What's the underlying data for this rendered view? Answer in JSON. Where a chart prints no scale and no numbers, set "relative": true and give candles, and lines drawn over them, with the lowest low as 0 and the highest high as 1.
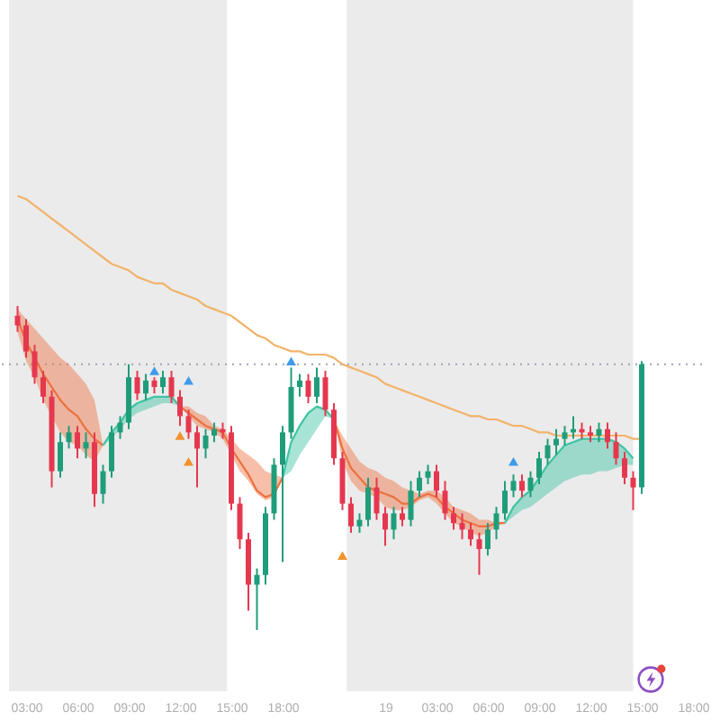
{
  "chart_data": {
    "type": "candlestick",
    "relative": true,
    "tick_labels": "x",
    "grid": false,
    "x": [
      "--01-18T02:30",
      "--01-18T03:00",
      "--01-18T03:30",
      "--01-18T04:00",
      "--01-18T04:30",
      "--01-18T05:00",
      "--01-18T05:30",
      "--01-18T06:00",
      "--01-18T06:30",
      "--01-18T07:00",
      "--01-18T07:30",
      "--01-18T08:00",
      "--01-18T08:30",
      "--01-18T09:00",
      "--01-18T09:30",
      "--01-18T10:00",
      "--01-18T10:30",
      "--01-18T11:00",
      "--01-18T11:30",
      "--01-18T12:00",
      "--01-18T12:30",
      "--01-18T13:00",
      "--01-18T13:30",
      "--01-18T14:00",
      "--01-18T14:30",
      "--01-18T15:00",
      "--01-18T15:30",
      "--01-18T16:00",
      "--01-18T16:30",
      "--01-18T17:00",
      "--01-18T17:30",
      "--01-18T18:00",
      "--01-18T18:30",
      "--01-18T19:00",
      "--01-18T19:30",
      "--01-18T20:00",
      "--01-18T20:30",
      "--01-18T21:00",
      "--01-18T21:30",
      "--01-18T22:00",
      "--01-18T22:30",
      "--01-18T23:00",
      "--01-18T23:30",
      "--01-19T00:00",
      "--01-19T00:30",
      "--01-19T01:00",
      "--01-19T01:30",
      "--01-19T02:00",
      "--01-19T02:30",
      "--01-19T03:00",
      "--01-19T03:30",
      "--01-19T04:00",
      "--01-19T04:30",
      "--01-19T05:00",
      "--01-19T05:30",
      "--01-19T06:00",
      "--01-19T06:30",
      "--01-19T07:00",
      "--01-19T07:30",
      "--01-19T08:00",
      "--01-19T08:30",
      "--01-19T09:00",
      "--01-19T09:30",
      "--01-19T10:00",
      "--01-19T10:30",
      "--01-19T11:00",
      "--01-19T11:30",
      "--01-19T12:00",
      "--01-19T12:30",
      "--01-19T13:00",
      "--01-19T13:30",
      "--01-19T14:00",
      "--01-19T14:30",
      "--01-19T15:00"
    ],
    "ohlc": [
      [
        0.97,
        1.0,
        0.92,
        0.94
      ],
      [
        0.94,
        0.96,
        0.84,
        0.86
      ],
      [
        0.86,
        0.88,
        0.76,
        0.78
      ],
      [
        0.78,
        0.8,
        0.7,
        0.72
      ],
      [
        0.72,
        0.74,
        0.44,
        0.49
      ],
      [
        0.49,
        0.61,
        0.47,
        0.58
      ],
      [
        0.58,
        0.63,
        0.56,
        0.61
      ],
      [
        0.61,
        0.63,
        0.53,
        0.56
      ],
      [
        0.56,
        0.61,
        0.53,
        0.58
      ],
      [
        0.58,
        0.61,
        0.38,
        0.42
      ],
      [
        0.42,
        0.51,
        0.39,
        0.49
      ],
      [
        0.49,
        0.63,
        0.47,
        0.61
      ],
      [
        0.61,
        0.66,
        0.59,
        0.64
      ],
      [
        0.64,
        0.82,
        0.62,
        0.78
      ],
      [
        0.78,
        0.8,
        0.71,
        0.73
      ],
      [
        0.73,
        0.79,
        0.71,
        0.77
      ],
      [
        0.77,
        0.78,
        0.73,
        0.75
      ],
      [
        0.75,
        0.8,
        0.73,
        0.78
      ],
      [
        0.78,
        0.8,
        0.7,
        0.72
      ],
      [
        0.72,
        0.74,
        0.63,
        0.66
      ],
      [
        0.66,
        0.68,
        0.59,
        0.61
      ],
      [
        0.61,
        0.63,
        0.44,
        0.56
      ],
      [
        0.56,
        0.62,
        0.53,
        0.6
      ],
      [
        0.6,
        0.64,
        0.58,
        0.62
      ],
      [
        0.62,
        0.64,
        0.59,
        0.61
      ],
      [
        0.61,
        0.63,
        0.37,
        0.39
      ],
      [
        0.39,
        0.41,
        0.25,
        0.28
      ],
      [
        0.28,
        0.3,
        0.06,
        0.14
      ],
      [
        0.14,
        0.19,
        0,
        0.17
      ],
      [
        0.17,
        0.38,
        0.14,
        0.36
      ],
      [
        0.36,
        0.53,
        0.34,
        0.51
      ],
      [
        0.51,
        0.63,
        0.21,
        0.61
      ],
      [
        0.61,
        0.81,
        0.59,
        0.75
      ],
      [
        0.75,
        0.79,
        0.72,
        0.77
      ],
      [
        0.77,
        0.79,
        0.7,
        0.72
      ],
      [
        0.72,
        0.81,
        0.7,
        0.78
      ],
      [
        0.78,
        0.8,
        0.66,
        0.68
      ],
      [
        0.68,
        0.7,
        0.51,
        0.53
      ],
      [
        0.53,
        0.55,
        0.37,
        0.39
      ],
      [
        0.39,
        0.41,
        0.3,
        0.32
      ],
      [
        0.32,
        0.36,
        0.3,
        0.34
      ],
      [
        0.34,
        0.47,
        0.32,
        0.44
      ],
      [
        0.44,
        0.47,
        0.34,
        0.36
      ],
      [
        0.36,
        0.38,
        0.26,
        0.31
      ],
      [
        0.31,
        0.38,
        0.28,
        0.36
      ],
      [
        0.36,
        0.38,
        0.32,
        0.34
      ],
      [
        0.34,
        0.46,
        0.32,
        0.43
      ],
      [
        0.43,
        0.49,
        0.41,
        0.47
      ],
      [
        0.47,
        0.51,
        0.45,
        0.49
      ],
      [
        0.49,
        0.51,
        0.41,
        0.43
      ],
      [
        0.43,
        0.46,
        0.34,
        0.36
      ],
      [
        0.36,
        0.38,
        0.31,
        0.33
      ],
      [
        0.33,
        0.36,
        0.28,
        0.31
      ],
      [
        0.31,
        0.33,
        0.26,
        0.28
      ],
      [
        0.28,
        0.3,
        0.17,
        0.25
      ],
      [
        0.25,
        0.33,
        0.23,
        0.31
      ],
      [
        0.31,
        0.38,
        0.28,
        0.36
      ],
      [
        0.36,
        0.46,
        0.34,
        0.43
      ],
      [
        0.43,
        0.48,
        0.41,
        0.46
      ],
      [
        0.46,
        0.48,
        0.41,
        0.43
      ],
      [
        0.43,
        0.49,
        0.41,
        0.47
      ],
      [
        0.47,
        0.55,
        0.45,
        0.53
      ],
      [
        0.53,
        0.59,
        0.51,
        0.57
      ],
      [
        0.57,
        0.62,
        0.54,
        0.59
      ],
      [
        0.59,
        0.63,
        0.57,
        0.61
      ],
      [
        0.61,
        0.66,
        0.59,
        0.62
      ],
      [
        0.62,
        0.64,
        0.59,
        0.61
      ],
      [
        0.61,
        0.63,
        0.58,
        0.6
      ],
      [
        0.6,
        0.64,
        0.58,
        0.62
      ],
      [
        0.62,
        0.64,
        0.56,
        0.58
      ],
      [
        0.58,
        0.61,
        0.51,
        0.53
      ],
      [
        0.53,
        0.55,
        0.45,
        0.47
      ],
      [
        0.47,
        0.49,
        0.37,
        0.44
      ],
      [
        0.44,
        0.83,
        0.42,
        0.82
      ]
    ],
    "colors": [
      "#e5384f",
      "#e5384f",
      "#e5384f",
      "#e5384f",
      "#e5384f",
      "#1f9d7a",
      "#1f9d7a",
      "#e5384f",
      "#1f9d7a",
      "#e5384f",
      "#1f9d7a",
      "#1f9d7a",
      "#1f9d7a",
      "#1f9d7a",
      "#e5384f",
      "#1f9d7a",
      "#e5384f",
      "#1f9d7a",
      "#e5384f",
      "#e5384f",
      "#e5384f",
      "#e5384f",
      "#1f9d7a",
      "#1f9d7a",
      "#e5384f",
      "#e5384f",
      "#e5384f",
      "#e5384f",
      "#1f9d7a",
      "#1f9d7a",
      "#1f9d7a",
      "#1f9d7a",
      "#1f9d7a",
      "#1f9d7a",
      "#e5384f",
      "#1f9d7a",
      "#e5384f",
      "#e5384f",
      "#e5384f",
      "#e5384f",
      "#1f9d7a",
      "#1f9d7a",
      "#e5384f",
      "#e5384f",
      "#1f9d7a",
      "#e5384f",
      "#1f9d7a",
      "#1f9d7a",
      "#1f9d7a",
      "#e5384f",
      "#e5384f",
      "#e5384f",
      "#e5384f",
      "#e5384f",
      "#e5384f",
      "#1f9d7a",
      "#1f9d7a",
      "#1f9d7a",
      "#1f9d7a",
      "#e5384f",
      "#1f9d7a",
      "#1f9d7a",
      "#1f9d7a",
      "#1f9d7a",
      "#1f9d7a",
      "#1f9d7a",
      "#e5384f",
      "#e5384f",
      "#1f9d7a",
      "#e5384f",
      "#e5384f",
      "#e5384f",
      "#e5384f",
      "#1f9d7a"
    ],
    "xlim": [
      "--01-18T02:00",
      "--01-19T18:00"
    ],
    "xticks": [
      {
        "value": "--01-18T03:00",
        "label": "03:00"
      },
      {
        "value": "--01-18T06:00",
        "label": "06:00"
      },
      {
        "value": "--01-18T09:00",
        "label": "09:00"
      },
      {
        "value": "--01-18T12:00",
        "label": "12:00"
      },
      {
        "value": "--01-18T15:00",
        "label": "15:00"
      },
      {
        "value": "--01-18T18:00",
        "label": "18:00"
      },
      {
        "value": "--01-19",
        "label": "19"
      },
      {
        "value": "--01-19T03:00",
        "label": "03:00"
      },
      {
        "value": "--01-19T06:00",
        "label": "06:00"
      },
      {
        "value": "--01-19T09:00",
        "label": "09:00"
      },
      {
        "value": "--01-19T12:00",
        "label": "12:00"
      },
      {
        "value": "--01-19T15:00",
        "label": "15:00"
      },
      {
        "value": "--01-19T18:00",
        "label": "18:00"
      }
    ],
    "bands": [
      {
        "axis": "x",
        "from": "--01-18T02:00",
        "to": "--01-18T14:45",
        "color": "#ebebeb"
      },
      {
        "axis": "x",
        "from": "--01-18T21:45",
        "to": "--01-19T14:30",
        "color": "#ebebeb"
      }
    ],
    "ref_lines": [
      {
        "axis": "y",
        "value": 0.82,
        "color": "#9aa5b1",
        "line_style": "dotted"
      }
    ],
    "series": [
      {
        "type": "line",
        "color": "#f2b36b",
        "values": [
          1.34,
          1.33,
          1.31,
          1.29,
          1.27,
          1.25,
          1.23,
          1.21,
          1.19,
          1.17,
          1.15,
          1.13,
          1.12,
          1.11,
          1.09,
          1.08,
          1.07,
          1.07,
          1.05,
          1.04,
          1.03,
          1.02,
          1.0,
          0.99,
          0.98,
          0.97,
          0.95,
          0.93,
          0.91,
          0.9,
          0.88,
          0.87,
          0.86,
          0.86,
          0.85,
          0.85,
          0.85,
          0.84,
          0.82,
          0.81,
          0.8,
          0.79,
          0.78,
          0.76,
          0.75,
          0.74,
          0.73,
          0.72,
          0.71,
          0.7,
          0.69,
          0.68,
          0.67,
          0.66,
          0.66,
          0.65,
          0.65,
          0.64,
          0.63,
          0.63,
          0.62,
          0.61,
          0.61,
          0.6,
          0.6,
          0.6,
          0.6,
          0.6,
          0.6,
          0.6,
          0.6,
          0.6,
          0.59,
          0.59
        ]
      },
      {
        "type": "line",
        "color": "#ee7040",
        "x": [
          "--01-18T02:30",
          "--01-18T03:00",
          "--01-18T03:30",
          "--01-18T04:00",
          "--01-18T04:30",
          "--01-18T05:00",
          "--01-18T05:30",
          "--01-18T06:00",
          "--01-18T06:30",
          "--01-18T07:00",
          "--01-18T07:30"
        ],
        "values": [
          0.96,
          0.89,
          0.84,
          0.79,
          0.75,
          0.71,
          0.68,
          0.66,
          0.62,
          0.59,
          0.57
        ],
        "lower": [
          0.92,
          0.83,
          0.78,
          0.71,
          0.66,
          0.61,
          0.58,
          0.57,
          0.54,
          0.52,
          0.57
        ],
        "upper": [
          0.99,
          0.96,
          0.93,
          0.9,
          0.87,
          0.84,
          0.82,
          0.79,
          0.76,
          0.71,
          0.57
        ]
      },
      {
        "type": "line",
        "color": "#3ec4a4",
        "x": [
          "--01-18T07:30",
          "--01-18T08:00",
          "--01-18T08:30",
          "--01-18T09:00",
          "--01-18T09:30",
          "--01-18T10:00",
          "--01-18T10:30",
          "--01-18T11:00",
          "--01-18T11:30",
          "--01-18T12:00"
        ],
        "values": [
          0.57,
          0.61,
          0.64,
          0.68,
          0.7,
          0.71,
          0.72,
          0.72,
          0.72,
          0.69
        ],
        "lower": [
          0.57,
          0.59,
          0.62,
          0.65,
          0.67,
          0.68,
          0.69,
          0.7,
          0.7,
          0.69
        ],
        "upper": [
          0.57,
          0.61,
          0.64,
          0.68,
          0.7,
          0.71,
          0.72,
          0.72,
          0.72,
          0.69
        ]
      },
      {
        "type": "line",
        "color": "#ee7040",
        "x": [
          "--01-18T12:00",
          "--01-18T12:30",
          "--01-18T13:00",
          "--01-18T13:30",
          "--01-18T14:00",
          "--01-18T14:30",
          "--01-18T15:00",
          "--01-18T15:30",
          "--01-18T16:00",
          "--01-18T16:30",
          "--01-18T17:00",
          "--01-18T17:30",
          "--01-18T18:00"
        ],
        "values": [
          0.69,
          0.67,
          0.65,
          0.63,
          0.62,
          0.61,
          0.56,
          0.52,
          0.48,
          0.43,
          0.41,
          0.42,
          0.47
        ],
        "lower": [
          0.69,
          0.66,
          0.63,
          0.62,
          0.61,
          0.59,
          0.54,
          0.49,
          0.46,
          0.42,
          0.4,
          0.41,
          0.47
        ],
        "upper": [
          0.69,
          0.69,
          0.67,
          0.66,
          0.63,
          0.62,
          0.59,
          0.56,
          0.54,
          0.52,
          0.49,
          0.48,
          0.47
        ]
      },
      {
        "type": "line",
        "color": "#3ec4a4",
        "x": [
          "--01-18T18:00",
          "--01-18T18:30",
          "--01-18T19:00",
          "--01-18T19:30",
          "--01-18T20:00",
          "--01-18T20:30",
          "--01-18T21:00"
        ],
        "values": [
          0.47,
          0.58,
          0.63,
          0.67,
          0.69,
          0.68,
          0.65
        ],
        "lower": [
          0.47,
          0.49,
          0.54,
          0.58,
          0.62,
          0.66,
          0.65
        ],
        "upper": [
          0.47,
          0.58,
          0.63,
          0.67,
          0.69,
          0.68,
          0.65
        ]
      },
      {
        "type": "line",
        "color": "#ee7040",
        "x": [
          "--01-18T21:00",
          "--01-18T21:30",
          "--01-18T22:00",
          "--01-18T22:30",
          "--01-18T23:00",
          "--01-18T23:30",
          "--01-19T00:00",
          "--01-19T00:30",
          "--01-19T01:00",
          "--01-19T01:30",
          "--01-19T02:00",
          "--01-19T02:30",
          "--01-19T03:00",
          "--01-19T03:30",
          "--01-19T04:00",
          "--01-19T04:30",
          "--01-19T05:00",
          "--01-19T05:30",
          "--01-19T06:00",
          "--01-19T06:30",
          "--01-19T07:00"
        ],
        "values": [
          0.65,
          0.56,
          0.5,
          0.47,
          0.44,
          0.43,
          0.42,
          0.41,
          0.39,
          0.39,
          0.41,
          0.42,
          0.41,
          0.38,
          0.36,
          0.34,
          0.33,
          0.32,
          0.32,
          0.33,
          0.33
        ],
        "lower": [
          0.65,
          0.52,
          0.46,
          0.43,
          0.42,
          0.41,
          0.38,
          0.37,
          0.37,
          0.38,
          0.4,
          0.41,
          0.39,
          0.36,
          0.33,
          0.32,
          0.3,
          0.29,
          0.3,
          0.32,
          0.33
        ],
        "upper": [
          0.65,
          0.6,
          0.56,
          0.52,
          0.5,
          0.49,
          0.47,
          0.46,
          0.44,
          0.43,
          0.42,
          0.43,
          0.43,
          0.41,
          0.38,
          0.37,
          0.36,
          0.34,
          0.34,
          0.33,
          0.33
        ]
      },
      {
        "type": "line",
        "color": "#3ec4a4",
        "x": [
          "--01-19T07:00",
          "--01-19T07:30",
          "--01-19T08:00",
          "--01-19T08:30",
          "--01-19T09:00",
          "--01-19T09:30",
          "--01-19T10:00",
          "--01-19T10:30",
          "--01-19T11:00",
          "--01-19T11:30",
          "--01-19T12:00",
          "--01-19T12:30",
          "--01-19T13:00",
          "--01-19T13:30",
          "--01-19T14:00",
          "--01-19T14:30"
        ],
        "values": [
          0.33,
          0.38,
          0.41,
          0.43,
          0.47,
          0.51,
          0.54,
          0.57,
          0.58,
          0.59,
          0.59,
          0.59,
          0.59,
          0.58,
          0.56,
          0.53
        ],
        "lower": [
          0.33,
          0.35,
          0.37,
          0.38,
          0.4,
          0.42,
          0.44,
          0.46,
          0.47,
          0.48,
          0.48,
          0.49,
          0.49,
          0.5,
          0.51,
          0.51
        ],
        "upper": [
          0.33,
          0.38,
          0.41,
          0.43,
          0.47,
          0.51,
          0.54,
          0.57,
          0.58,
          0.59,
          0.59,
          0.59,
          0.59,
          0.58,
          0.56,
          0.53
        ]
      },
      {
        "type": "scatter",
        "color": "#3d9be9",
        "marker": "triangle",
        "x": [
          "--01-18T10:30",
          "--01-18T12:30",
          "--01-18T18:30",
          "--01-19T07:30"
        ],
        "values": [
          0.8,
          0.77,
          0.83,
          0.52
        ]
      },
      {
        "type": "scatter",
        "color": "#f0922b",
        "marker": "triangle",
        "x": [
          "--01-18T12:00",
          "--01-18T12:30",
          "--01-18T21:30"
        ],
        "values": [
          0.6,
          0.52,
          0.23
        ]
      }
    ]
  }
}
